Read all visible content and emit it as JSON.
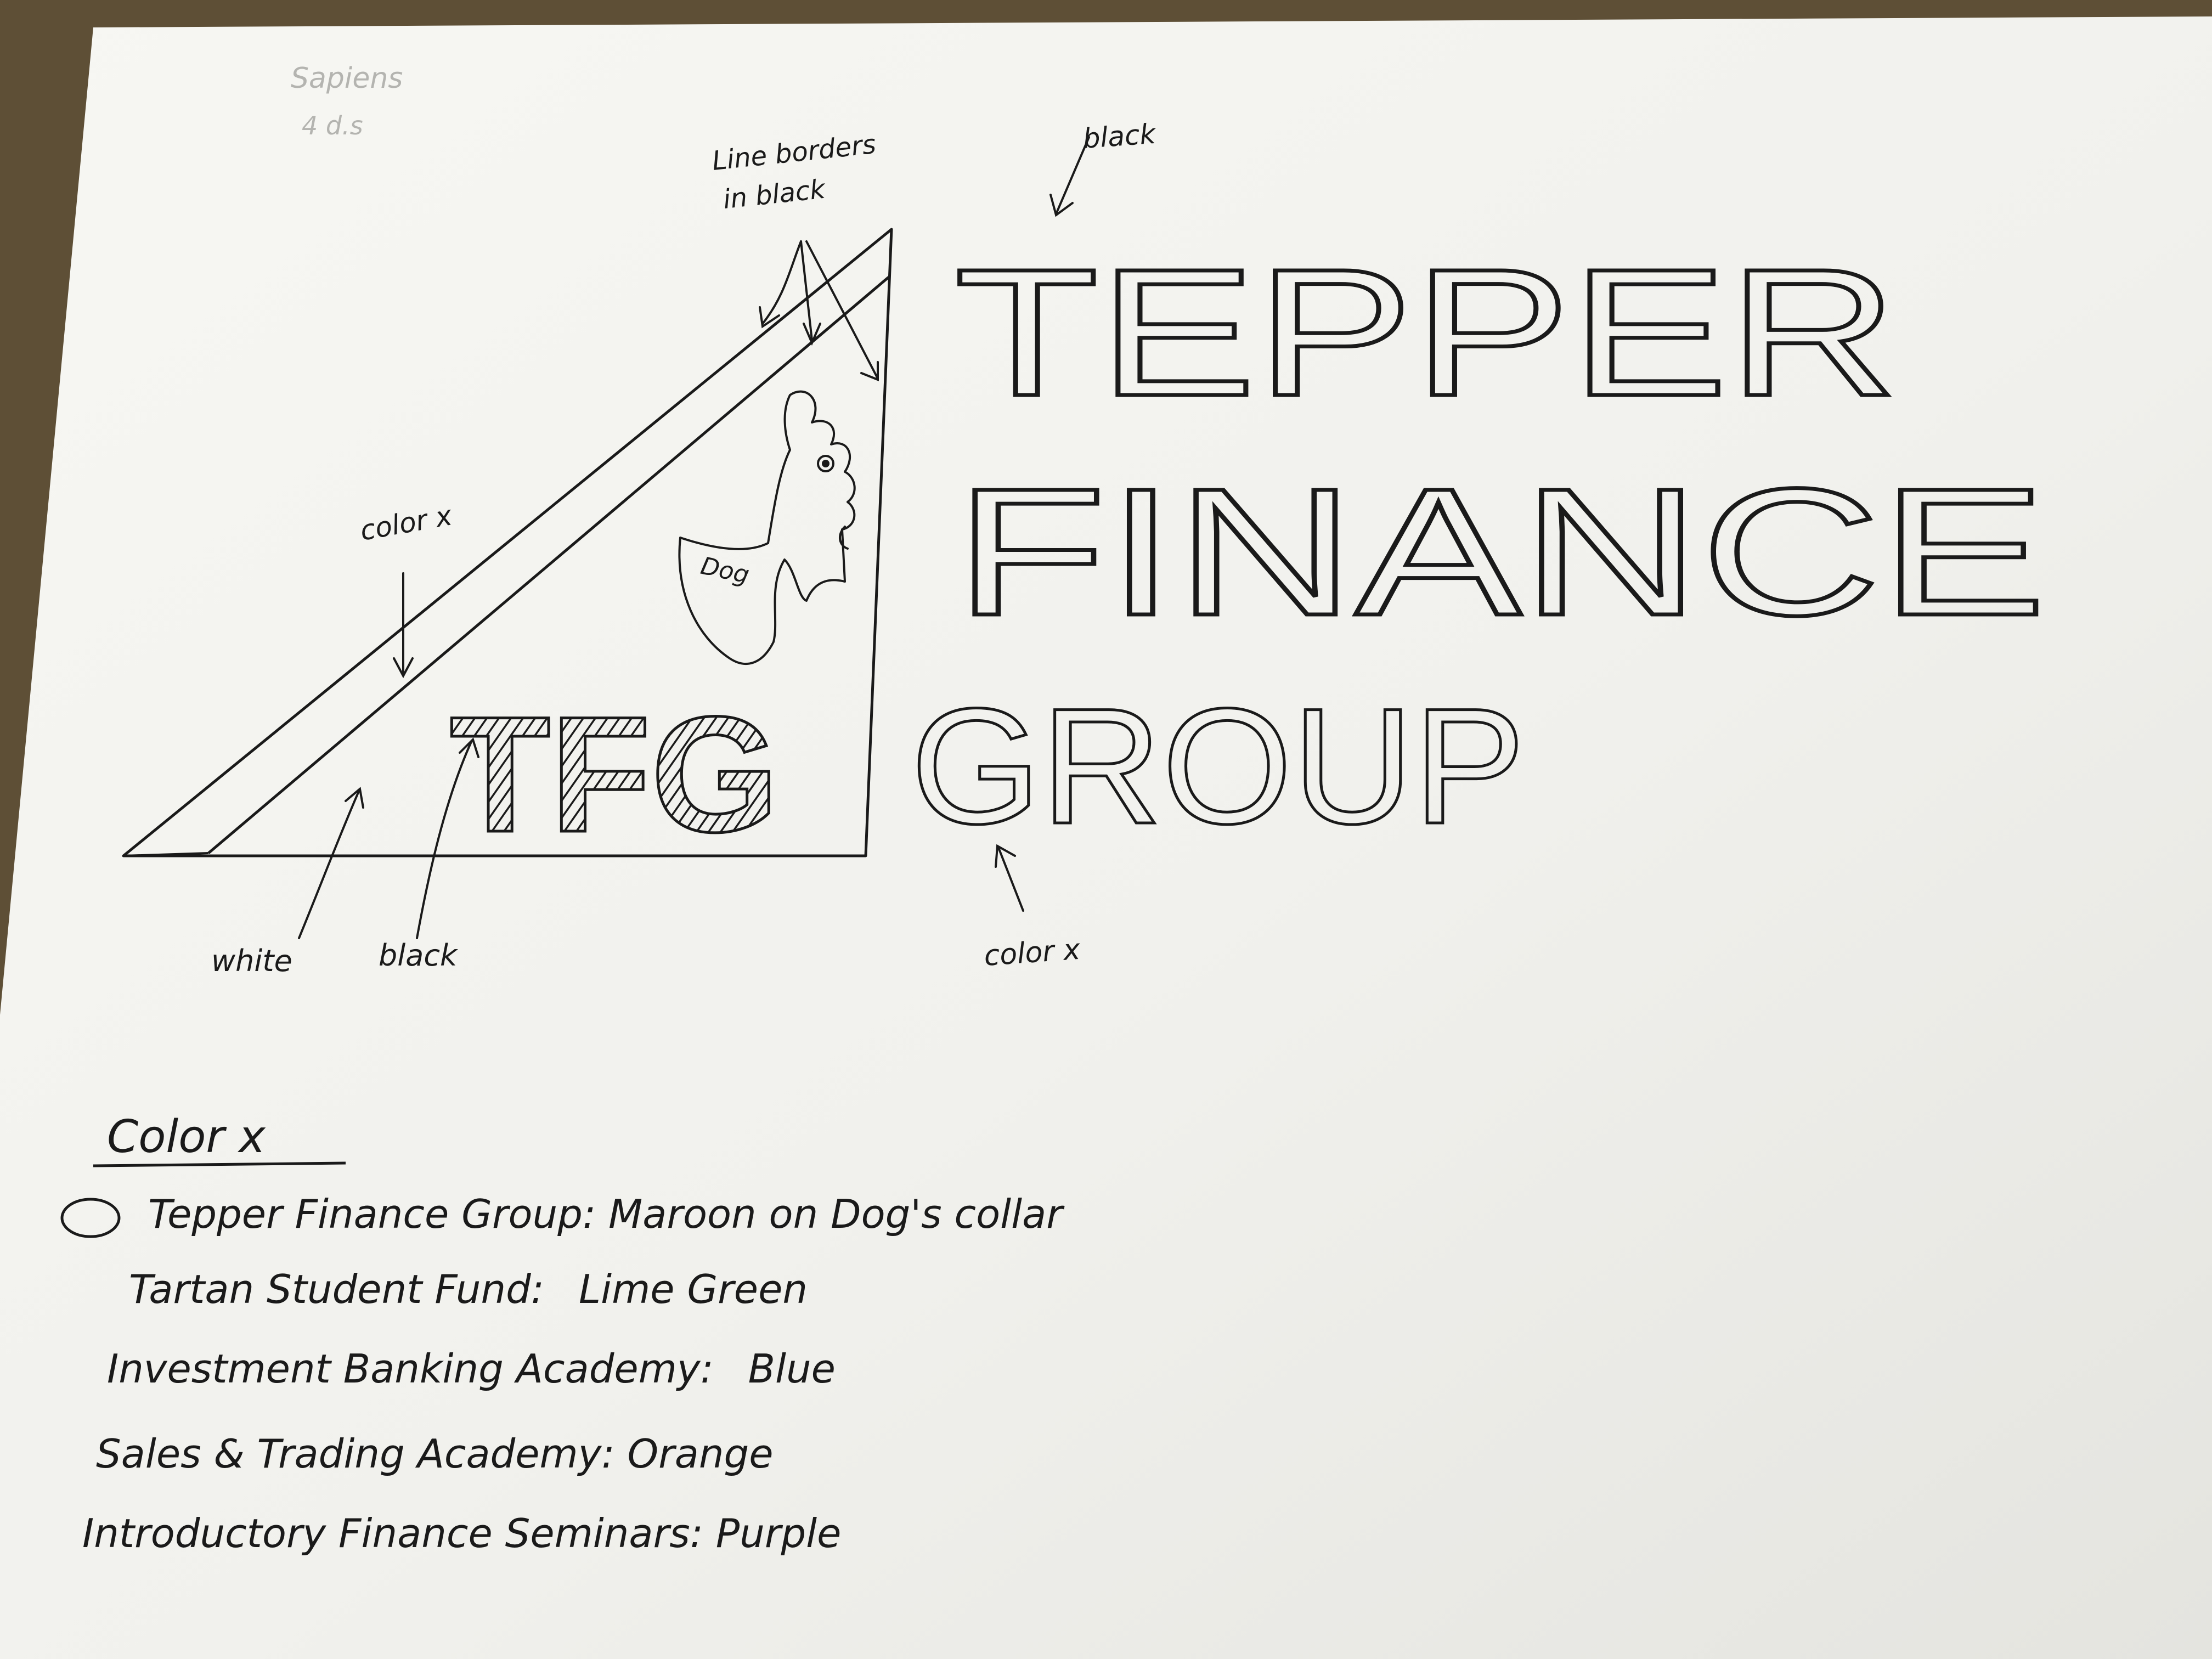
{
  "sketch": {
    "corner_note": [
      "Sapiens",
      "4 d.s"
    ],
    "annotations": {
      "line_borders": [
        "Line borders",
        "in black"
      ],
      "black_top": "black",
      "color_x_band": "color x",
      "white": "white",
      "black_letters": "black",
      "color_x_group": "color x"
    },
    "logo_letters": "TFG",
    "dog_label": "Dog",
    "title_lines": [
      "TEPPER",
      "FINANCE",
      "GROUP"
    ],
    "colors": {
      "paper": "#f2f2ee",
      "ink": "#1a1a1a",
      "desk": "#6b5a3e"
    }
  },
  "legend": {
    "heading": "Color x",
    "items": [
      {
        "prefix": "",
        "name": "Tepper Finance Group",
        "value": "Maroon on Dog's collar"
      },
      {
        "prefix": "",
        "name": "Tartan Student Fund",
        "value": "Lime Green"
      },
      {
        "prefix": "",
        "name": "Investment Banking Academy",
        "value": "Blue"
      },
      {
        "prefix": "",
        "name": "Sales & Trading Academy",
        "value": "Orange"
      },
      {
        "prefix": "",
        "name": "Introductory Finance Seminars",
        "value": "Purple"
      }
    ]
  }
}
